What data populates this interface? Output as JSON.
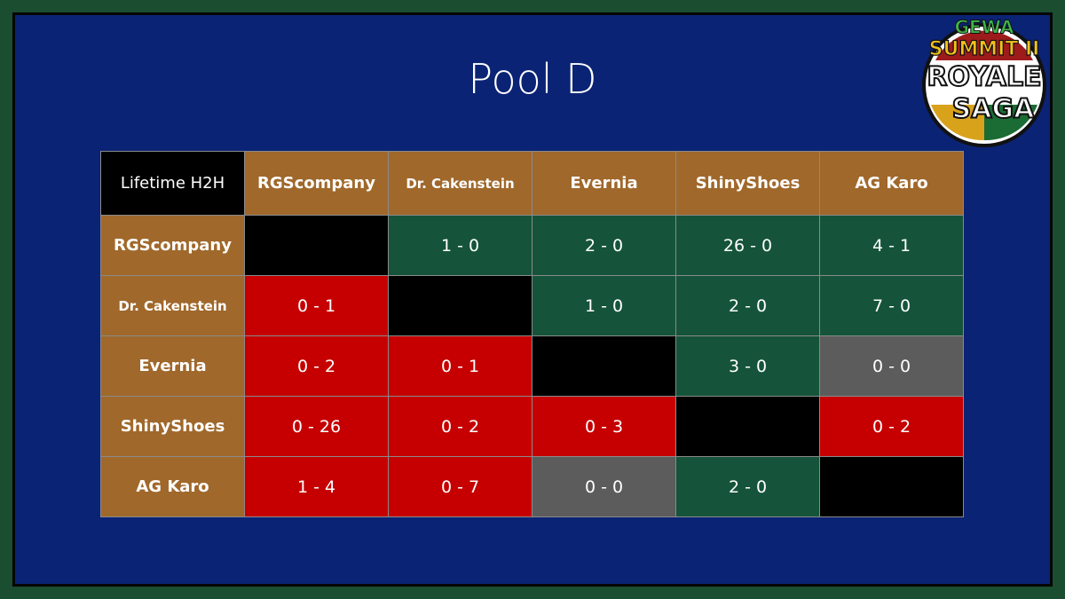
{
  "title": "Pool D",
  "logo": {
    "lines": [
      "GEWA",
      "SUMMIT II",
      "ROYALE",
      "SAGA"
    ]
  },
  "table": {
    "corner": "Lifetime H2H",
    "columns": [
      "RGScompany",
      "Dr. Cakenstein",
      "Evernia",
      "ShinyShoes",
      "AG Karo"
    ],
    "rows": [
      {
        "label": "RGScompany",
        "cells": [
          null,
          "1 - 0",
          "2 - 0",
          "26 - 0",
          "4 - 1"
        ]
      },
      {
        "label": "Dr. Cakenstein",
        "cells": [
          "0 - 1",
          null,
          "1 - 0",
          "2 - 0",
          "7 - 0"
        ]
      },
      {
        "label": "Evernia",
        "cells": [
          "0 - 2",
          "0 - 1",
          null,
          "3 - 0",
          "0 - 0"
        ]
      },
      {
        "label": "ShinyShoes",
        "cells": [
          "0 - 26",
          "0 - 2",
          "0 - 3",
          null,
          "0 - 2"
        ]
      },
      {
        "label": "AG Karo",
        "cells": [
          "1 - 4",
          "0 - 7",
          "0 - 0",
          "2 - 0",
          null
        ]
      }
    ]
  }
}
